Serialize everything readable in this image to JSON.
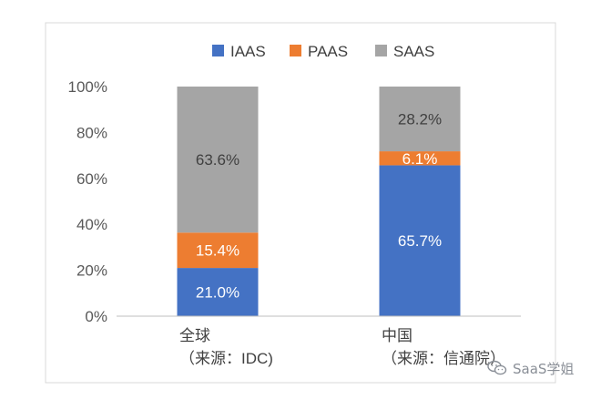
{
  "chart_data": {
    "type": "bar",
    "stacked": true,
    "categories": [
      [
        "全球",
        "（来源：IDC)"
      ],
      [
        "中国",
        "（来源：信通院）"
      ]
    ],
    "series": [
      {
        "name": "IAAS",
        "color": "#4472c4",
        "values": [
          21.0,
          65.7
        ],
        "labels": [
          "21.0%",
          "65.7%"
        ]
      },
      {
        "name": "PAAS",
        "color": "#ed7d31",
        "values": [
          15.4,
          6.1
        ],
        "labels": [
          "15.4%",
          "6.1%"
        ]
      },
      {
        "name": "SAAS",
        "color": "#a5a5a5",
        "values": [
          63.6,
          28.2
        ],
        "labels": [
          "63.6%",
          "28.2%"
        ]
      }
    ],
    "yticks": [
      "0%",
      "20%",
      "40%",
      "60%",
      "80%",
      "100%"
    ],
    "ylim": [
      0,
      100
    ],
    "grid": false,
    "legend": "top-center",
    "title": "",
    "xlabel": "",
    "ylabel": ""
  },
  "watermark": {
    "text": "SaaS学姐",
    "icon": "wechat-icon"
  }
}
